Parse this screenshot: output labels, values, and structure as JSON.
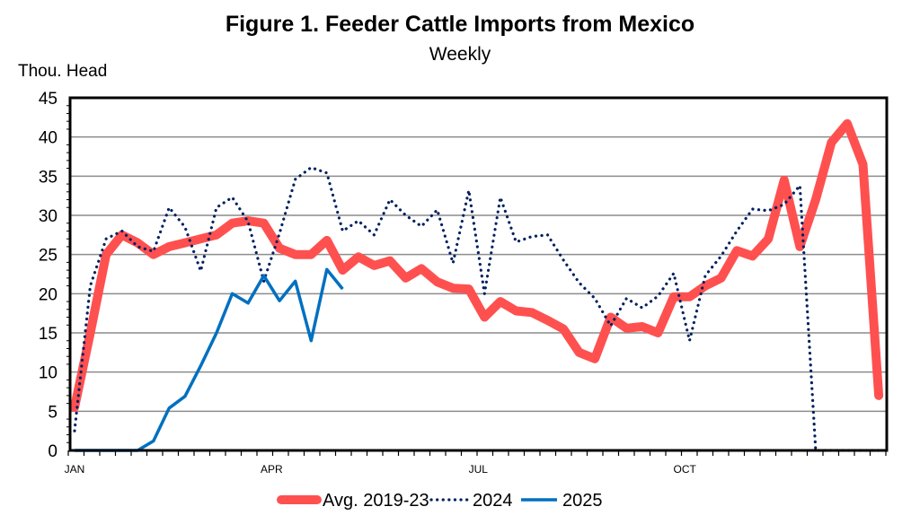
{
  "chart_data": {
    "type": "line",
    "title": "Figure 1.  Feeder Cattle Imports from Mexico",
    "subtitle": "Weekly",
    "ylabel": "Thou. Head",
    "xlabel": "",
    "ylim": [
      0,
      45
    ],
    "yticks": [
      0,
      5,
      10,
      15,
      20,
      25,
      30,
      35,
      40,
      45
    ],
    "ytick_labels": [
      "0",
      "5",
      "10",
      "15",
      "20",
      "25",
      "30",
      "35",
      "40",
      "45"
    ],
    "x_unit": "week",
    "xlim": [
      0,
      51
    ],
    "month_labels": [
      {
        "label": "JAN",
        "week": 0
      },
      {
        "label": "APR",
        "week": 12.5
      },
      {
        "label": "JUL",
        "week": 25.6
      },
      {
        "label": "OCT",
        "week": 38.7
      }
    ],
    "grid": true,
    "legend_position": "bottom",
    "series": [
      {
        "name": "Avg. 2019-23",
        "color": "#FF5050",
        "style": "thick",
        "values": [
          5.5,
          15,
          25,
          27.5,
          26.5,
          25,
          26,
          26.5,
          27,
          27.5,
          29,
          29.3,
          29,
          25.8,
          25,
          25,
          26.8,
          23,
          24.7,
          23.6,
          24.2,
          22,
          23.2,
          21.5,
          20.7,
          20.6,
          17,
          19,
          17.8,
          17.6,
          16.6,
          15.5,
          12.5,
          11.7,
          17,
          15.6,
          15.8,
          15,
          19.6,
          19.6,
          21,
          22,
          25.5,
          24.8,
          27,
          34.5,
          26,
          32,
          39.3,
          41.7,
          36.5,
          7
        ]
      },
      {
        "name": "2024",
        "color": "#002060",
        "style": "dotted",
        "values": [
          2.5,
          21,
          27,
          28,
          26,
          25.4,
          31,
          28.5,
          22.9,
          31,
          32.3,
          29.2,
          21.6,
          27.7,
          34.6,
          36.1,
          35.4,
          28,
          29.3,
          27.5,
          32,
          30,
          28.6,
          30.7,
          23.9,
          33.2,
          20,
          32.3,
          26.6,
          27.3,
          27.5,
          24.3,
          21.4,
          19.4,
          15.9,
          19.4,
          18.2,
          19.7,
          22.6,
          14,
          22.3,
          24.8,
          28,
          30.8,
          30.6,
          31.4,
          33.8,
          0,
          0,
          0,
          0,
          0
        ]
      },
      {
        "name": "2025",
        "color": "#0070C0",
        "style": "solid",
        "values": [
          0,
          0,
          0,
          0,
          0,
          1.2,
          5.4,
          6.9,
          10.8,
          15,
          20,
          18.8,
          22.3,
          19.1,
          21.6,
          14,
          23.1,
          20.6
        ]
      }
    ]
  }
}
